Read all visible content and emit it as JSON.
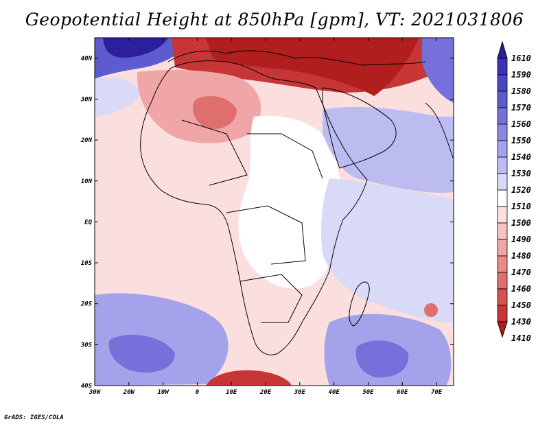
{
  "title": "Geopotential Height at 850hPa [gpm], VT: 2021031806",
  "credit": "GrADS: IGES/COLA",
  "map": {
    "lon_range": [
      -30,
      75
    ],
    "lat_range": [
      -40,
      45
    ],
    "x_ticks": [
      "30W",
      "20W",
      "10W",
      "0",
      "10E",
      "20E",
      "30E",
      "40E",
      "50E",
      "60E",
      "70E"
    ],
    "x_tick_values": [
      -30,
      -20,
      -10,
      0,
      10,
      20,
      30,
      40,
      50,
      60,
      70
    ],
    "y_ticks": [
      "40N",
      "30N",
      "20N",
      "10N",
      "EQ",
      "10S",
      "20S",
      "30S",
      "40S"
    ],
    "y_tick_values": [
      40,
      30,
      20,
      10,
      0,
      -10,
      -20,
      -30,
      -40
    ]
  },
  "colorbar": {
    "labels": [
      "1610",
      "1590",
      "1580",
      "1570",
      "1560",
      "1550",
      "1540",
      "1530",
      "1520",
      "1510",
      "1500",
      "1490",
      "1480",
      "1470",
      "1460",
      "1450",
      "1430",
      "1410"
    ],
    "colors": [
      "#2b1f9b",
      "#3b33b3",
      "#4c46c4",
      "#5e5ad0",
      "#7570da",
      "#8c88e2",
      "#a4a2ea",
      "#bdbcf1",
      "#d9d9f8",
      "#ffffff",
      "#fbdede",
      "#f6c2c2",
      "#f0a6a6",
      "#e88a8a",
      "#df6e6e",
      "#d55252",
      "#c63636",
      "#b01e1e"
    ]
  },
  "fields": {
    "background": "#fbdede",
    "regions": [
      {
        "name": "north-high-red",
        "color": "#c63636"
      },
      {
        "name": "north-deep-red",
        "color": "#b01e1e"
      },
      {
        "name": "sahara-red",
        "color": "#f0a6a6"
      },
      {
        "name": "sahara-core",
        "color": "#df6e6e"
      },
      {
        "name": "central-white",
        "color": "#ffffff"
      },
      {
        "name": "arabia-blue",
        "color": "#bdbcf1"
      },
      {
        "name": "indian-blue",
        "color": "#d9d9f8"
      },
      {
        "name": "sw-blue",
        "color": "#a4a2ea"
      },
      {
        "name": "sw-core",
        "color": "#7570da"
      },
      {
        "name": "se-blue",
        "color": "#a4a2ea"
      },
      {
        "name": "se-core",
        "color": "#7570da"
      },
      {
        "name": "nw-blue",
        "color": "#5e5ad0"
      },
      {
        "name": "nw-core",
        "color": "#2b1f9b"
      },
      {
        "name": "ne-blue",
        "color": "#7570da"
      },
      {
        "name": "south-red",
        "color": "#c63636"
      }
    ]
  }
}
